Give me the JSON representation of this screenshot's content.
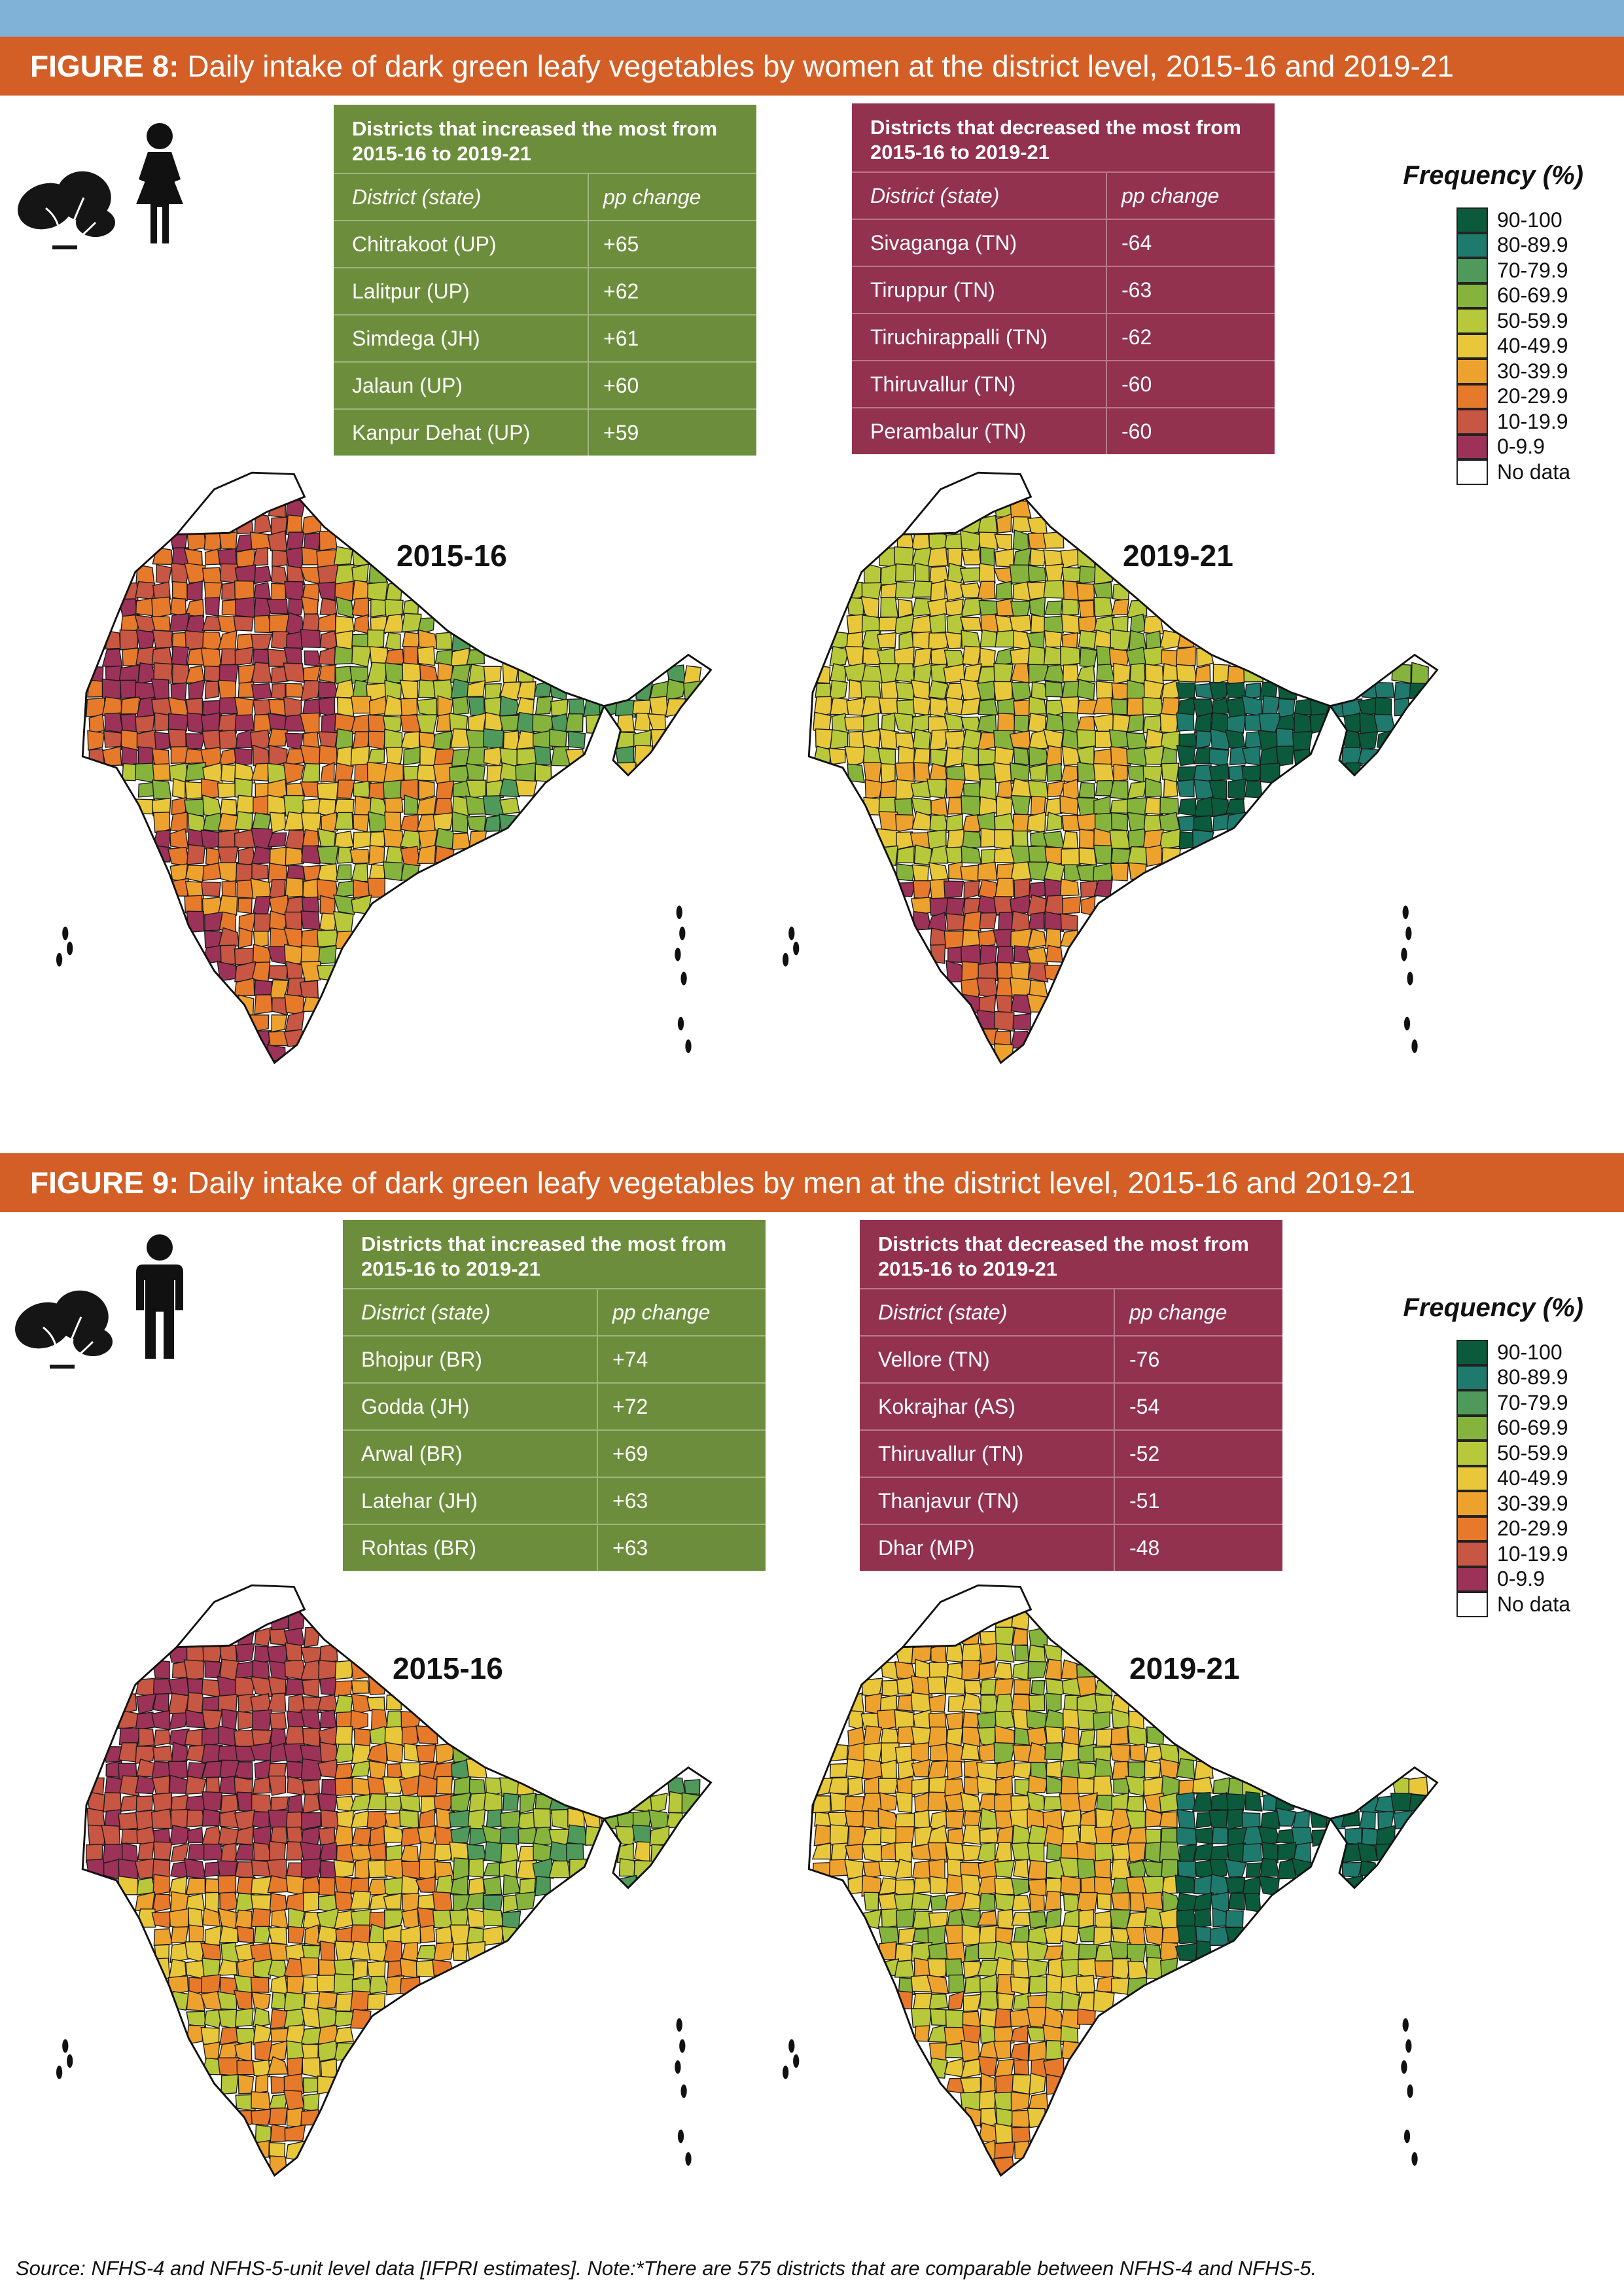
{
  "figures": [
    {
      "label": "FIGURE 8:",
      "caption": " Daily intake of dark green leafy vegetables by women at the district level, 2015-16 and 2019-21",
      "icon": "woman-icon",
      "increased": {
        "title": "Districts that increased the most from 2015-16 to 2019-21",
        "col_district": "District (state)",
        "col_change": "pp change",
        "rows": [
          {
            "district": "Chitrakoot (UP)",
            "change": "+65"
          },
          {
            "district": "Lalitpur (UP)",
            "change": "+62"
          },
          {
            "district": "Simdega (JH)",
            "change": "+61"
          },
          {
            "district": "Jalaun (UP)",
            "change": "+60"
          },
          {
            "district": "Kanpur Dehat (UP)",
            "change": "+59"
          }
        ]
      },
      "decreased": {
        "title": "Districts that decreased the most from 2015-16 to 2019-21",
        "col_district": "District (state)",
        "col_change": "pp change",
        "rows": [
          {
            "district": "Sivaganga (TN)",
            "change": "-64"
          },
          {
            "district": "Tiruppur (TN)",
            "change": "-63"
          },
          {
            "district": "Tiruchirappalli (TN)",
            "change": "-62"
          },
          {
            "district": "Thiruvallur (TN)",
            "change": "-60"
          },
          {
            "district": "Perambalur (TN)",
            "change": "-60"
          }
        ]
      },
      "map_left_label": "2015-16",
      "map_right_label": "2019-21"
    },
    {
      "label": "FIGURE 9:",
      "caption": " Daily intake of dark green leafy vegetables by men at the district level, 2015-16 and 2019-21",
      "icon": "man-icon",
      "increased": {
        "title": "Districts that increased the most from 2015-16 to 2019-21",
        "col_district": "District (state)",
        "col_change": "pp change",
        "rows": [
          {
            "district": "Bhojpur (BR)",
            "change": "+74"
          },
          {
            "district": "Godda (JH)",
            "change": "+72"
          },
          {
            "district": "Arwal (BR)",
            "change": "+69"
          },
          {
            "district": "Latehar (JH)",
            "change": "+63"
          },
          {
            "district": "Rohtas (BR)",
            "change": "+63"
          }
        ]
      },
      "decreased": {
        "title": "Districts that decreased the most from 2015-16 to 2019-21",
        "col_district": "District (state)",
        "col_change": "pp change",
        "rows": [
          {
            "district": "Vellore (TN)",
            "change": "-76"
          },
          {
            "district": "Kokrajhar (AS)",
            "change": "-54"
          },
          {
            "district": "Thiruvallur (TN)",
            "change": "-52"
          },
          {
            "district": "Thanjavur (TN)",
            "change": "-51"
          },
          {
            "district": "Dhar (MP)",
            "change": "-48"
          }
        ]
      },
      "map_left_label": "2015-16",
      "map_right_label": "2019-21"
    }
  ],
  "legend": {
    "title": "Frequency (%)",
    "items": [
      {
        "label": "90-100",
        "color": "#0b5a3c"
      },
      {
        "label": "80-89.9",
        "color": "#1f7a6e"
      },
      {
        "label": "70-79.9",
        "color": "#4f9a5a"
      },
      {
        "label": "60-69.9",
        "color": "#86b33c"
      },
      {
        "label": "50-59.9",
        "color": "#b7c93a"
      },
      {
        "label": "40-49.9",
        "color": "#e8c83a"
      },
      {
        "label": "30-39.9",
        "color": "#eea22e"
      },
      {
        "label": "20-29.9",
        "color": "#e67a2a"
      },
      {
        "label": "10-19.9",
        "color": "#c75642"
      },
      {
        "label": "0-9.9",
        "color": "#9c3258"
      },
      {
        "label": "No data",
        "color": "#ffffff"
      }
    ]
  },
  "source": "Source: NFHS-4 and NFHS-5-unit level data [IFPRI estimates]. Note:*There are 575 districts that are comparable between NFHS-4 and NFHS-5."
}
